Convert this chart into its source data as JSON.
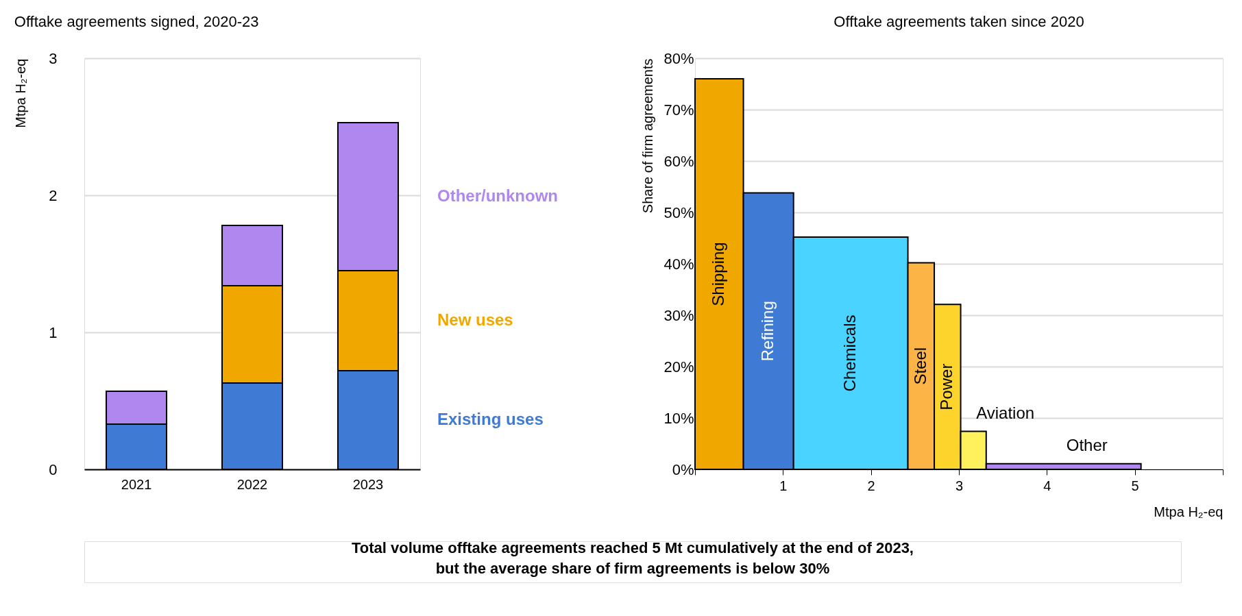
{
  "chart_data": [
    {
      "type": "bar",
      "title": "Offtake agreements signed, 2020-23",
      "ylabel": "Mtpa H₂-eq",
      "categories": [
        "2021",
        "2022",
        "2023"
      ],
      "stacked": true,
      "ylim": [
        0,
        3
      ],
      "yticks": [
        0,
        1,
        2,
        3
      ],
      "grid": "y",
      "series": [
        {
          "name": "Existing uses",
          "color": "#3f7bd4",
          "values": [
            0.33,
            0.63,
            0.72
          ]
        },
        {
          "name": "New uses",
          "color": "#f0a800",
          "values": [
            null,
            0.71,
            0.73
          ]
        },
        {
          "name": "Other/unknown",
          "color": "#b086ef",
          "values": [
            0.24,
            0.44,
            1.08
          ]
        }
      ],
      "annotations": [
        "Total volume offtake agreements reached 5 Mt cumulatively at the end of 2023,",
        "but the average share of firm agreements is below 30%"
      ]
    },
    {
      "type": "histogram",
      "title": "Offtake agreements taken since 2020",
      "xlabel": "Mtpa H₂-eq",
      "ylabel": "Share of firm agreements",
      "bins": [
        0,
        0.55,
        1.12,
        2.42,
        2.72,
        3.02,
        3.31,
        5.07
      ],
      "values": [
        76.0,
        53.8,
        45.2,
        40.2,
        32.1,
        7.4,
        1.1
      ],
      "colors": [
        "#f0a800",
        "#3f7bd4",
        "#4ad3ff",
        "#fdb446",
        "#fdd42b",
        "#fff15c",
        "#b086ef"
      ],
      "xlim": [
        0,
        6
      ],
      "xticks": [
        {
          "value": 0,
          "label": null
        },
        1,
        2,
        3,
        4,
        5,
        {
          "value": 6,
          "label": null
        }
      ],
      "ylim": [
        0,
        80
      ],
      "yticks": [
        {
          "value": 0,
          "label": "0%"
        },
        {
          "value": 10,
          "label": "10%"
        },
        {
          "value": 20,
          "label": "20%"
        },
        {
          "value": 30,
          "label": "30%"
        },
        {
          "value": 40,
          "label": "40%"
        },
        {
          "value": 50,
          "label": "50%"
        },
        {
          "value": 60,
          "label": "60%"
        },
        {
          "value": 70,
          "label": "70%"
        },
        {
          "value": 80,
          "label": "80%"
        }
      ],
      "grid": "y",
      "annotations": [
        "Shipping",
        "Refining",
        "Chemicals",
        "Steel",
        "Power",
        "Aviation",
        "Other"
      ]
    }
  ]
}
